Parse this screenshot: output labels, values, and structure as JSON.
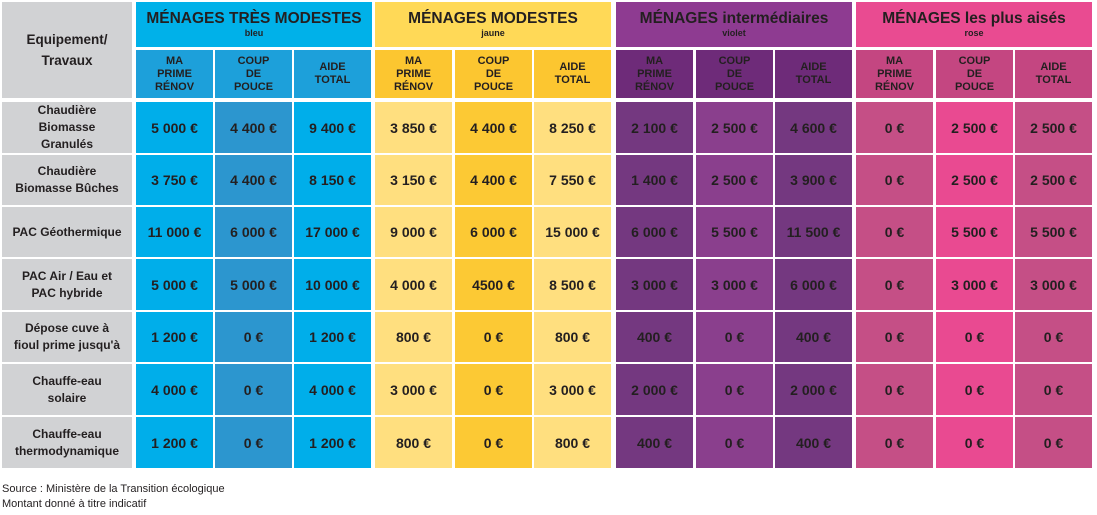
{
  "corner_label": "Equipement/ Travaux",
  "groups": [
    {
      "title": "MÉNAGES TRÈS MODESTES",
      "subtitle": "bleu",
      "head": "#00b1e9",
      "sub": "#1da0da",
      "dark": "#2c96cf",
      "light": "#00aeea"
    },
    {
      "title": "MÉNAGES MODESTES",
      "subtitle": "jaune",
      "head": "#ffd957",
      "sub": "#fcc630",
      "dark": "#fcc934",
      "light": "#ffdf7f"
    },
    {
      "title": "MÉNAGES intermédiaires",
      "subtitle": "violet",
      "head": "#8e3b91",
      "sub": "#6e2b79",
      "dark": "#8a3f8d",
      "light": "#743880"
    },
    {
      "title": "MÉNAGES les plus aisés",
      "subtitle": "rose",
      "head": "#e94b91",
      "sub": "#c44681",
      "dark": "#e94a91",
      "light": "#c54f86"
    }
  ],
  "column_labels": [
    "MA PRIME RÉNOV",
    "COUP DE POUCE",
    "AIDE TOTAL"
  ],
  "rows": [
    {
      "label": "Chaudière Biomasse Granulés",
      "values": [
        "5 000 €",
        "4 400 €",
        "9 400 €",
        "3 850 €",
        "4 400 €",
        "8 250 €",
        "2 100 €",
        "2 500 €",
        "4 600 €",
        "0 €",
        "2  500 €",
        "2 500 €"
      ]
    },
    {
      "label": "Chaudière Biomasse Bûches",
      "values": [
        "3 750 €",
        "4 400 €",
        "8 150 €",
        "3 150 €",
        "4 400 €",
        "7 550 €",
        "1 400 €",
        "2 500 €",
        "3 900 €",
        "0 €",
        "2  500 €",
        "2 500 €"
      ]
    },
    {
      "label": "PAC Géothermique",
      "values": [
        "11 000 €",
        "6 000 €",
        "17 000 €",
        "9 000 €",
        "6 000 €",
        "15 000 €",
        "6 000 €",
        "5 500 €",
        "11 500 €",
        "0 €",
        "5 500 €",
        "5 500 €"
      ]
    },
    {
      "label": "PAC Air / Eau et PAC hybride",
      "values": [
        "5 000 €",
        "5 000 €",
        "10 000 €",
        "4 000 €",
        "4500 €",
        "8 500 €",
        "3 000 €",
        "3 000 €",
        "6 000 €",
        "0 €",
        "3 000 €",
        "3 000 €"
      ]
    },
    {
      "label": "Dépose cuve à fioul prime jusqu'à",
      "values": [
        "1 200 €",
        "0 €",
        "1 200 €",
        "800 €",
        "0 €",
        "800 €",
        "400 €",
        "0 €",
        "400 €",
        "0 €",
        "0 €",
        "0 €"
      ]
    },
    {
      "label": "Chauffe-eau solaire",
      "values": [
        "4 000 €",
        "0 €",
        "4 000 €",
        "3 000 €",
        "0 €",
        "3 000 €",
        "2 000 €",
        "0 €",
        "2 000 €",
        "0 €",
        "0 €",
        "0 €"
      ]
    },
    {
      "label": "Chauffe-eau thermodynamique",
      "values": [
        "1 200 €",
        "0 €",
        "1 200 €",
        "800 €",
        "0 €",
        "800 €",
        "400 €",
        "0 €",
        "400 €",
        "0 €",
        "0 €",
        "0 €"
      ]
    }
  ],
  "footer": {
    "source": "Source : Ministère de la Transition écologique",
    "note": "Montant donné à titre indicatif"
  }
}
